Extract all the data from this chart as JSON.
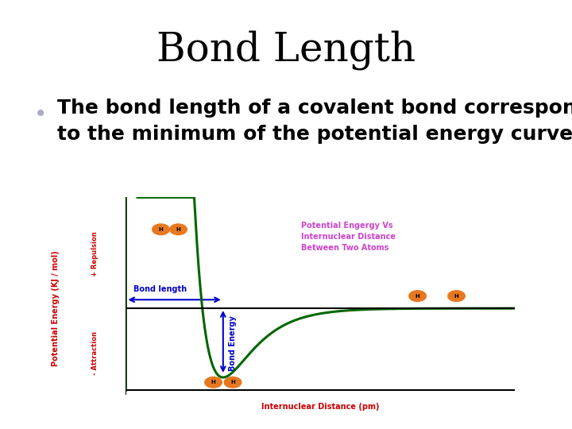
{
  "title": "Bond Length",
  "title_fontsize": 36,
  "title_color": "#000000",
  "bullet_text_line1": "The bond length of a covalent bond corresponds",
  "bullet_text_line2": "to the minimum of the potential energy curve.",
  "bullet_fontsize": 18,
  "bullet_color": "#000000",
  "bullet_dot_color": "#aaaacc",
  "ylabel_top": "+ Repulsion",
  "ylabel_main": "Potential Energy (KJ / mol)",
  "ylabel_bottom": "- Attraction",
  "ylabel_color": "#cc0000",
  "xlabel": "Internuclear Distance (pm)",
  "xlabel_color": "#cc0000",
  "annotation_title": "Potential Engergy Vs\nInternuclear Distance\nBetween Two Atoms",
  "annotation_color": "#cc44cc",
  "bond_length_label": "Bond length",
  "bond_length_color": "#0000cc",
  "bond_energy_label": "Bond Energy",
  "bond_energy_color": "#0000cc",
  "curve_color": "#006600",
  "zero_line_color": "#000000",
  "atom_color": "#e87820",
  "atom_text_color": "#000000",
  "background_color": "#ffffff",
  "fig_width": 7.2,
  "fig_height": 5.4,
  "dpi": 100
}
